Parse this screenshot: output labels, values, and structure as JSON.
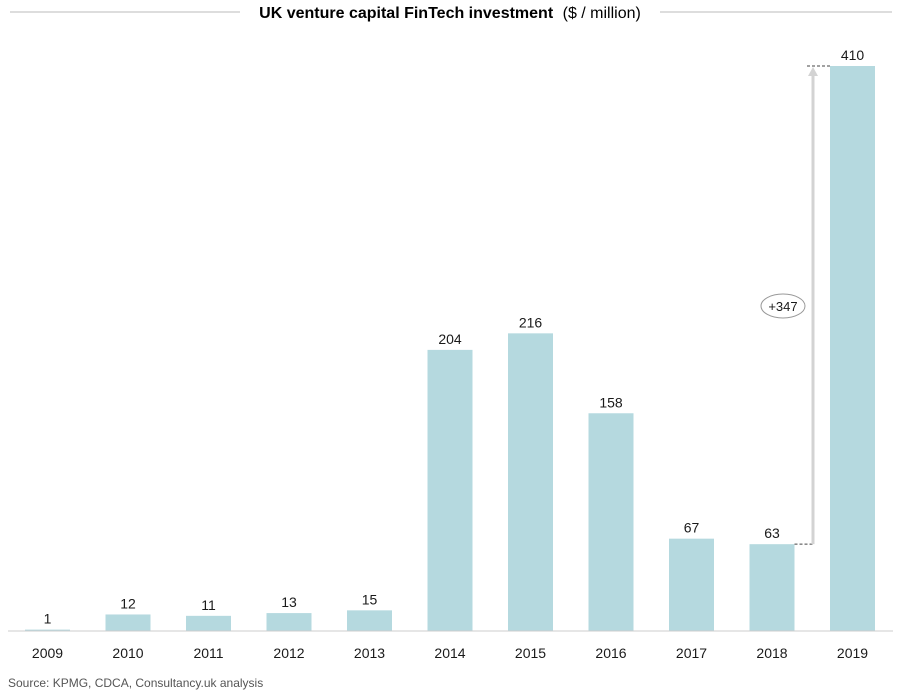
{
  "chart_data": {
    "type": "bar",
    "title": "UK venture capital FinTech investment",
    "title_unit": "($ / million)",
    "categories": [
      "2009",
      "2010",
      "2011",
      "2012",
      "2013",
      "2014",
      "2015",
      "2016",
      "2017",
      "2018",
      "2019"
    ],
    "values": [
      1,
      12,
      11,
      13,
      15,
      204,
      216,
      158,
      67,
      63,
      410
    ],
    "ylim": [
      0,
      410
    ],
    "grid": false,
    "bar_color": "#b5d9df",
    "annotation": {
      "label": "+347",
      "from_category": "2018",
      "to_category": "2019"
    }
  },
  "source": "Source: KPMG, CDCA, Consultancy.uk analysis"
}
